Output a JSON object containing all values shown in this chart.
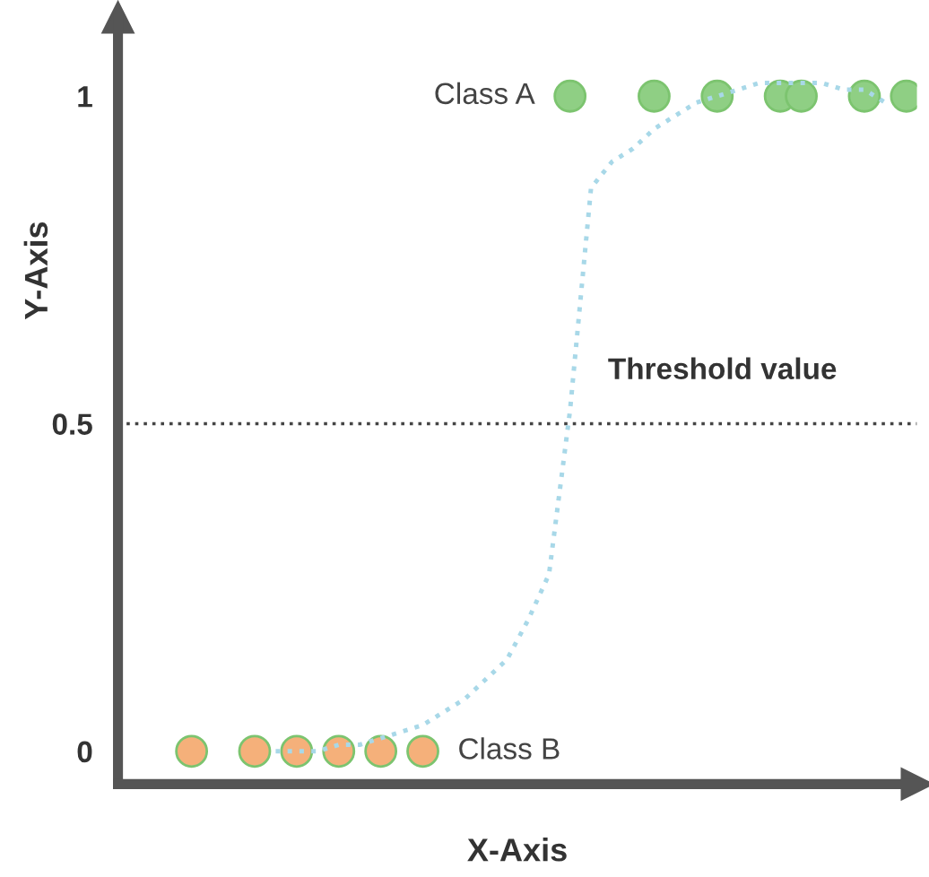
{
  "chart_data": {
    "type": "scatter",
    "xlabel": "X-Axis",
    "ylabel": "Y-Axis",
    "categories": [
      null,
      null,
      null,
      null,
      null,
      null,
      null,
      null,
      null,
      null,
      null,
      null,
      null,
      null,
      null,
      null,
      null,
      null,
      null,
      null,
      null,
      null,
      null,
      null,
      null,
      null,
      null,
      null,
      null,
      null,
      null,
      null,
      null,
      null,
      null,
      null,
      null,
      null
    ],
    "ylim": [
      -0.05,
      1.12
    ],
    "yticks": [
      0,
      0.5,
      1
    ],
    "tick_labels": "y",
    "marker": "circle",
    "series": [
      {
        "type": "line",
        "color": "#a8d8e8",
        "line_style": "dotted",
        "marker": "none",
        "values": [
          null,
          null,
          null,
          null,
          null,
          null,
          null,
          0.0,
          0.0,
          0.0,
          0.01,
          0.01,
          0.02,
          0.03,
          0.04,
          0.06,
          0.08,
          0.11,
          0.14,
          0.2,
          0.27,
          0.52,
          0.86,
          0.9,
          0.92,
          0.95,
          0.97,
          0.99,
          1.0,
          1.01,
          1.02,
          1.02,
          1.02,
          1.02,
          1.01,
          1.01,
          0.99,
          null
        ]
      },
      {
        "name": "Class A",
        "color": "#8fcf84",
        "values": [
          null,
          null,
          null,
          null,
          null,
          null,
          null,
          null,
          null,
          null,
          null,
          null,
          null,
          null,
          null,
          null,
          null,
          null,
          null,
          null,
          null,
          1,
          null,
          null,
          null,
          1,
          null,
          null,
          1,
          null,
          null,
          1,
          1,
          null,
          null,
          1,
          null,
          1
        ]
      },
      {
        "name": "Class B",
        "color": "#f5b07a",
        "values": [
          null,
          null,
          null,
          0,
          null,
          null,
          0,
          null,
          0,
          null,
          0,
          null,
          0,
          null,
          0,
          null,
          null,
          null,
          null,
          null,
          null,
          null,
          null,
          null,
          null,
          null,
          null,
          null,
          null,
          null,
          null,
          null,
          null,
          null,
          null,
          null,
          null,
          null
        ]
      }
    ],
    "ref_lines": [
      {
        "axis": "y",
        "value": 0.5,
        "label": "Threshold value",
        "color": "#444444",
        "line_style": "dotted"
      }
    ]
  }
}
